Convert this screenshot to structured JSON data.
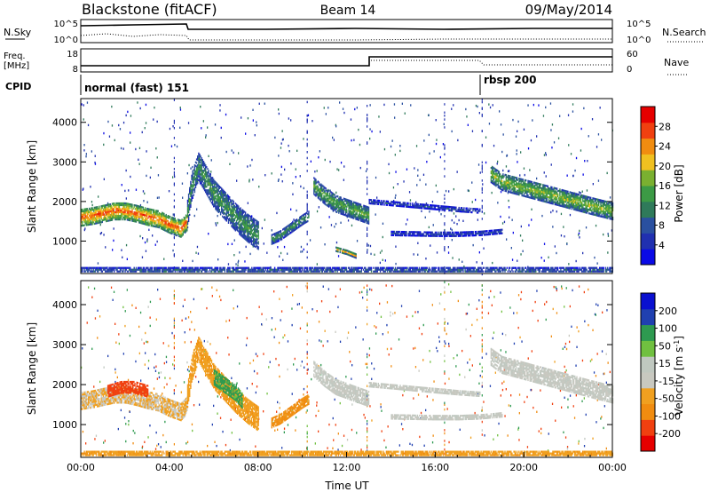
{
  "header": {
    "station": "Blackstone (fitACF)",
    "beam": "Beam 14",
    "date": "09/May/2014"
  },
  "nsky_panel": {
    "left_label": "N.Sky",
    "right_label": "N.Search",
    "ticks_left": [
      "10^5",
      "10^0"
    ],
    "ticks_right": [
      "10^5",
      "10^0"
    ]
  },
  "freq_panel": {
    "left_label_1": "Freq.",
    "left_label_2": "[MHz]",
    "right_label": "Nave",
    "ticks_left": [
      "18",
      "8"
    ],
    "ticks_right": [
      "60",
      "0"
    ]
  },
  "cpid": {
    "label": "CPID",
    "modes": [
      {
        "name": "normal (fast) 151",
        "start_hour": 0
      },
      {
        "name": "rbsp 200",
        "start_hour": 18
      }
    ]
  },
  "colors": {
    "power": [
      "#0a0ae6",
      "#2030b0",
      "#2a50a0",
      "#2f7a5a",
      "#3c9a45",
      "#7ab030",
      "#f0c020",
      "#f08c10",
      "#f04010",
      "#e60000"
    ],
    "velocity": [
      "#e60000",
      "#f04010",
      "#f08c10",
      "#f0a020",
      "#c8c8c0",
      "#c0c8c0",
      "#70c040",
      "#2e9a50",
      "#2040b0",
      "#0a10d0"
    ]
  },
  "chart_data": [
    {
      "type": "heatmap",
      "name": "power",
      "ylabel": "Slant Range [km]",
      "xlabel": "",
      "xlim": [
        0,
        24
      ],
      "ylim": [
        180,
        4600
      ],
      "yticks": [
        "1000",
        "2000",
        "3000",
        "4000"
      ],
      "colorbar": {
        "label": "Power [dB]",
        "ticks": [
          "4",
          "8",
          "12",
          "16",
          "20",
          "24",
          "28"
        ],
        "range": [
          0,
          32
        ]
      },
      "bands": [
        {
          "x": [
            0,
            0.5,
            1,
            1.5,
            2,
            2.5,
            3,
            3.5,
            4,
            4.5,
            4.8
          ],
          "y": [
            1600,
            1640,
            1700,
            1760,
            1760,
            1700,
            1620,
            1560,
            1420,
            1320,
            1500
          ],
          "width": 420,
          "level": 24
        },
        {
          "x": [
            4.8,
            5,
            5.3,
            5.6,
            6,
            6.5,
            7,
            7.5,
            8
          ],
          "y": [
            1700,
            2400,
            2900,
            2600,
            2200,
            1900,
            1600,
            1350,
            1150
          ],
          "width": 700,
          "level": 12
        },
        {
          "x": [
            8.6,
            9,
            9.5,
            10,
            10.3
          ],
          "y": [
            1050,
            1150,
            1350,
            1550,
            1650
          ],
          "width": 240,
          "level": 12
        },
        {
          "x": [
            10.5,
            11,
            11.5,
            12,
            12.5,
            13
          ],
          "y": [
            2400,
            2150,
            1950,
            1850,
            1750,
            1650
          ],
          "width": 420,
          "level": 14
        },
        {
          "x": [
            11.5,
            12,
            12.4
          ],
          "y": [
            800,
            720,
            630
          ],
          "width": 100,
          "level": 20
        },
        {
          "x": [
            13,
            14,
            15,
            16,
            17,
            18
          ],
          "y": [
            2000,
            1950,
            1900,
            1850,
            1800,
            1760
          ],
          "width": 90,
          "level": 6
        },
        {
          "x": [
            14,
            15,
            16,
            17,
            18,
            19
          ],
          "y": [
            1200,
            1190,
            1180,
            1180,
            1200,
            1250
          ],
          "width": 100,
          "level": 6
        },
        {
          "x": [
            18.5,
            19,
            20,
            21,
            22,
            23,
            24
          ],
          "y": [
            2700,
            2500,
            2350,
            2200,
            2050,
            1900,
            1760
          ],
          "width": 420,
          "level": 16
        },
        {
          "x": [
            0,
            4,
            8,
            12,
            16,
            20,
            24
          ],
          "y": [
            260,
            260,
            260,
            260,
            260,
            260,
            260
          ],
          "width": 140,
          "level": 8
        }
      ]
    },
    {
      "type": "heatmap",
      "name": "velocity",
      "ylabel": "Slant Range [km]",
      "xlabel": "Time UT",
      "xlim": [
        0,
        24
      ],
      "ylim": [
        180,
        4600
      ],
      "yticks": [
        "1000",
        "2000",
        "3000",
        "4000"
      ],
      "xticks": [
        "00:00",
        "04:00",
        "08:00",
        "12:00",
        "16:00",
        "20:00",
        "00:00"
      ],
      "colorbar": {
        "label": "Velocity [m s",
        "label_sup": "-1",
        "label_end": "]",
        "ticks": [
          "-200",
          "-100",
          "-50",
          "-15",
          "15",
          "50",
          "100",
          "200"
        ]
      },
      "bands": [
        {
          "x": [
            0,
            0.5,
            1,
            1.5,
            2,
            2.5,
            3,
            3.5,
            4,
            4.5,
            4.8
          ],
          "y": [
            1600,
            1640,
            1700,
            1760,
            1760,
            1700,
            1620,
            1560,
            1420,
            1320,
            1500
          ],
          "width": 420,
          "level": -15
        },
        {
          "x": [
            1.2,
            1.8,
            2.4,
            3
          ],
          "y": [
            1850,
            1950,
            1950,
            1850
          ],
          "width": 300,
          "level": -180
        },
        {
          "x": [
            4.8,
            5,
            5.3,
            5.6,
            6,
            6.5,
            7,
            7.5,
            8
          ],
          "y": [
            1700,
            2400,
            2900,
            2600,
            2200,
            1900,
            1600,
            1350,
            1150
          ],
          "width": 600,
          "level": -40
        },
        {
          "x": [
            6,
            6.5,
            7,
            7.3
          ],
          "y": [
            2200,
            2000,
            1800,
            1600
          ],
          "width": 400,
          "level": 60
        },
        {
          "x": [
            8.6,
            9,
            9.5,
            10,
            10.3
          ],
          "y": [
            1050,
            1150,
            1350,
            1550,
            1650
          ],
          "width": 240,
          "level": -60
        },
        {
          "x": [
            10.5,
            11,
            11.5,
            12,
            12.5,
            13
          ],
          "y": [
            2400,
            2150,
            1950,
            1850,
            1750,
            1650
          ],
          "width": 380,
          "level": 0
        },
        {
          "x": [
            13,
            14,
            15,
            16,
            17,
            18
          ],
          "y": [
            2000,
            1950,
            1900,
            1850,
            1800,
            1760
          ],
          "width": 90,
          "level": 0
        },
        {
          "x": [
            14,
            15,
            16,
            17,
            18,
            19
          ],
          "y": [
            1200,
            1190,
            1180,
            1180,
            1200,
            1250
          ],
          "width": 100,
          "level": 0
        },
        {
          "x": [
            18.5,
            19,
            20,
            21,
            22,
            23,
            24
          ],
          "y": [
            2700,
            2500,
            2350,
            2200,
            2050,
            1900,
            1760
          ],
          "width": 420,
          "level": 0
        },
        {
          "x": [
            0,
            4,
            8,
            12,
            16,
            20,
            24
          ],
          "y": [
            260,
            260,
            260,
            260,
            260,
            260,
            260
          ],
          "width": 140,
          "level": -40
        }
      ]
    }
  ]
}
